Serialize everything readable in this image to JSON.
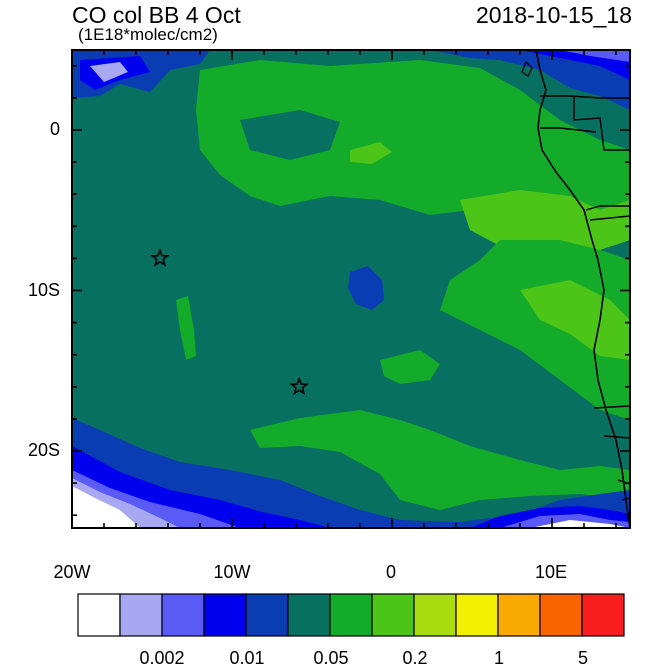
{
  "header": {
    "title": "CO col BB 4 Oct",
    "units": "(1E18*molec/cm2)",
    "datetime": "2018-10-15_18"
  },
  "axes": {
    "lat_labels": [
      "0",
      "10S",
      "20S"
    ],
    "lon_labels": [
      "20W",
      "10W",
      "0",
      "10E"
    ]
  },
  "colorbar": {
    "colors": [
      "#ffffff",
      "#a8a8f2",
      "#5a5af5",
      "#0000ee",
      "#0a3cb4",
      "#087060",
      "#14aa2a",
      "#4cc418",
      "#a8dc10",
      "#f0f000",
      "#f8aa00",
      "#f86400",
      "#f81e1e"
    ],
    "tick_labels": [
      "0.002",
      "0.01",
      "0.05",
      "0.2",
      "1",
      "5"
    ]
  },
  "markers": [
    {
      "name": "star",
      "lon": -14.5,
      "lat": -8.0
    },
    {
      "name": "star",
      "lon": -5.8,
      "lat": -16.0
    }
  ]
}
